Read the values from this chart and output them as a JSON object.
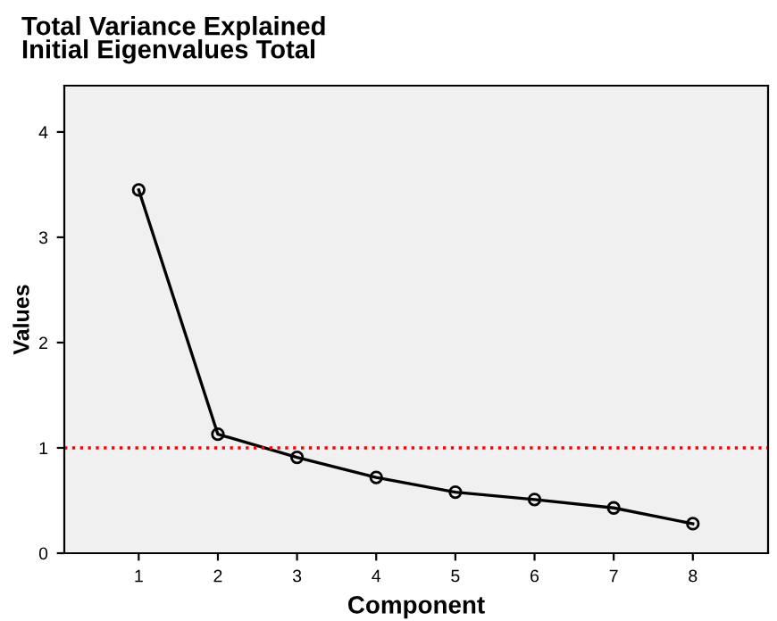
{
  "chart_data": {
    "type": "line",
    "title": "Total Variance Explained\nInitial Eigenvalues Total",
    "xlabel": "Component",
    "ylabel": "Values",
    "x": [
      1,
      2,
      3,
      4,
      5,
      6,
      7,
      8
    ],
    "series": [
      {
        "color": "#000000",
        "values": [
          3.45,
          1.13,
          0.91,
          0.72,
          0.58,
          0.51,
          0.43,
          0.28
        ]
      }
    ],
    "marker": "circle",
    "line_style": "solid",
    "xlim": [
      0.06,
      8.95
    ],
    "xticks": [
      1,
      2,
      3,
      4,
      5,
      6,
      7,
      8
    ],
    "ylim": [
      0,
      4.44
    ],
    "yticks": [
      0,
      1,
      2,
      3,
      4
    ],
    "ref_lines": [
      {
        "axis": "y",
        "value": 1,
        "color": "#ff0000",
        "line_style": "dotted"
      }
    ],
    "grid": false,
    "legend": false
  }
}
